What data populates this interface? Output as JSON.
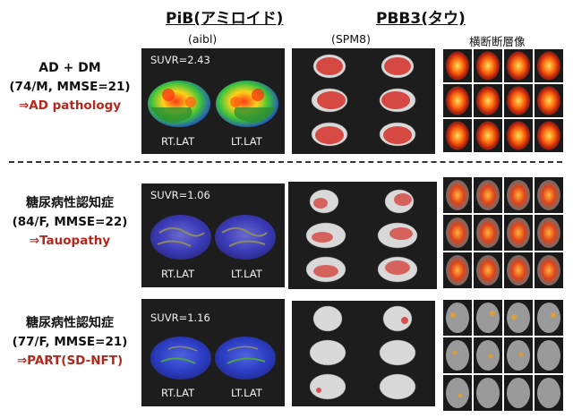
{
  "headers": {
    "pib_title": "PiB(アミロイド)",
    "pbb3_title": "PBB3(タウ)",
    "pib_method": "(aibl)",
    "pbb3_method": "(SPM8)",
    "axial_label": "横断断層像"
  },
  "patients": [
    {
      "title": "AD + DM",
      "info": "(74/M, MMSE=21)",
      "pathology": "⇒AD pathology",
      "suvr": "SUVR=2.43",
      "rt_label": "RT.LAT",
      "lt_label": "LT.LAT"
    },
    {
      "title": "糖尿病性認知症",
      "info": "(84/F, MMSE=22)",
      "pathology": "⇒Tauopathy",
      "suvr": "SUVR=1.06",
      "rt_label": "RT.LAT",
      "lt_label": "LT.LAT"
    },
    {
      "title": "糖尿病性認知症",
      "info": "(77/F, MMSE=21)",
      "pathology": "⇒PART(SD-NFT)",
      "suvr": "SUVR=1.16",
      "rt_label": "RT.LAT",
      "lt_label": "LT.LAT"
    }
  ],
  "colors": {
    "pathology_text": "#b5271c",
    "panel_bg": "#1d1d1d"
  }
}
